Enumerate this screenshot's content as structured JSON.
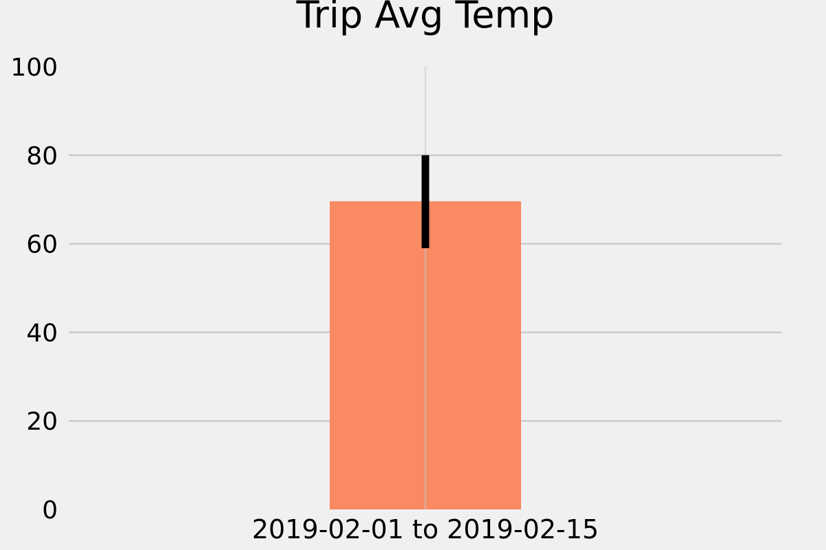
{
  "colors": {
    "background": "#f0f0f0",
    "grid": "#cbcbcb",
    "bar": "#f98a62",
    "error_bar": "#000000"
  },
  "chart_data": {
    "type": "bar",
    "title": "Trip Avg Temp",
    "xlabel": "",
    "ylabel": "",
    "categories": [
      "2019-02-01 to 2019-02-15"
    ],
    "values": [
      69.6
    ],
    "error": {
      "low": 59,
      "high": 80
    },
    "ylim": [
      0,
      100
    ],
    "yticks": [
      0,
      20,
      40,
      60,
      80,
      100
    ],
    "ytick_labels": [
      "0",
      "20",
      "40",
      "60",
      "80",
      "100"
    ],
    "grid": true,
    "legend": false
  }
}
